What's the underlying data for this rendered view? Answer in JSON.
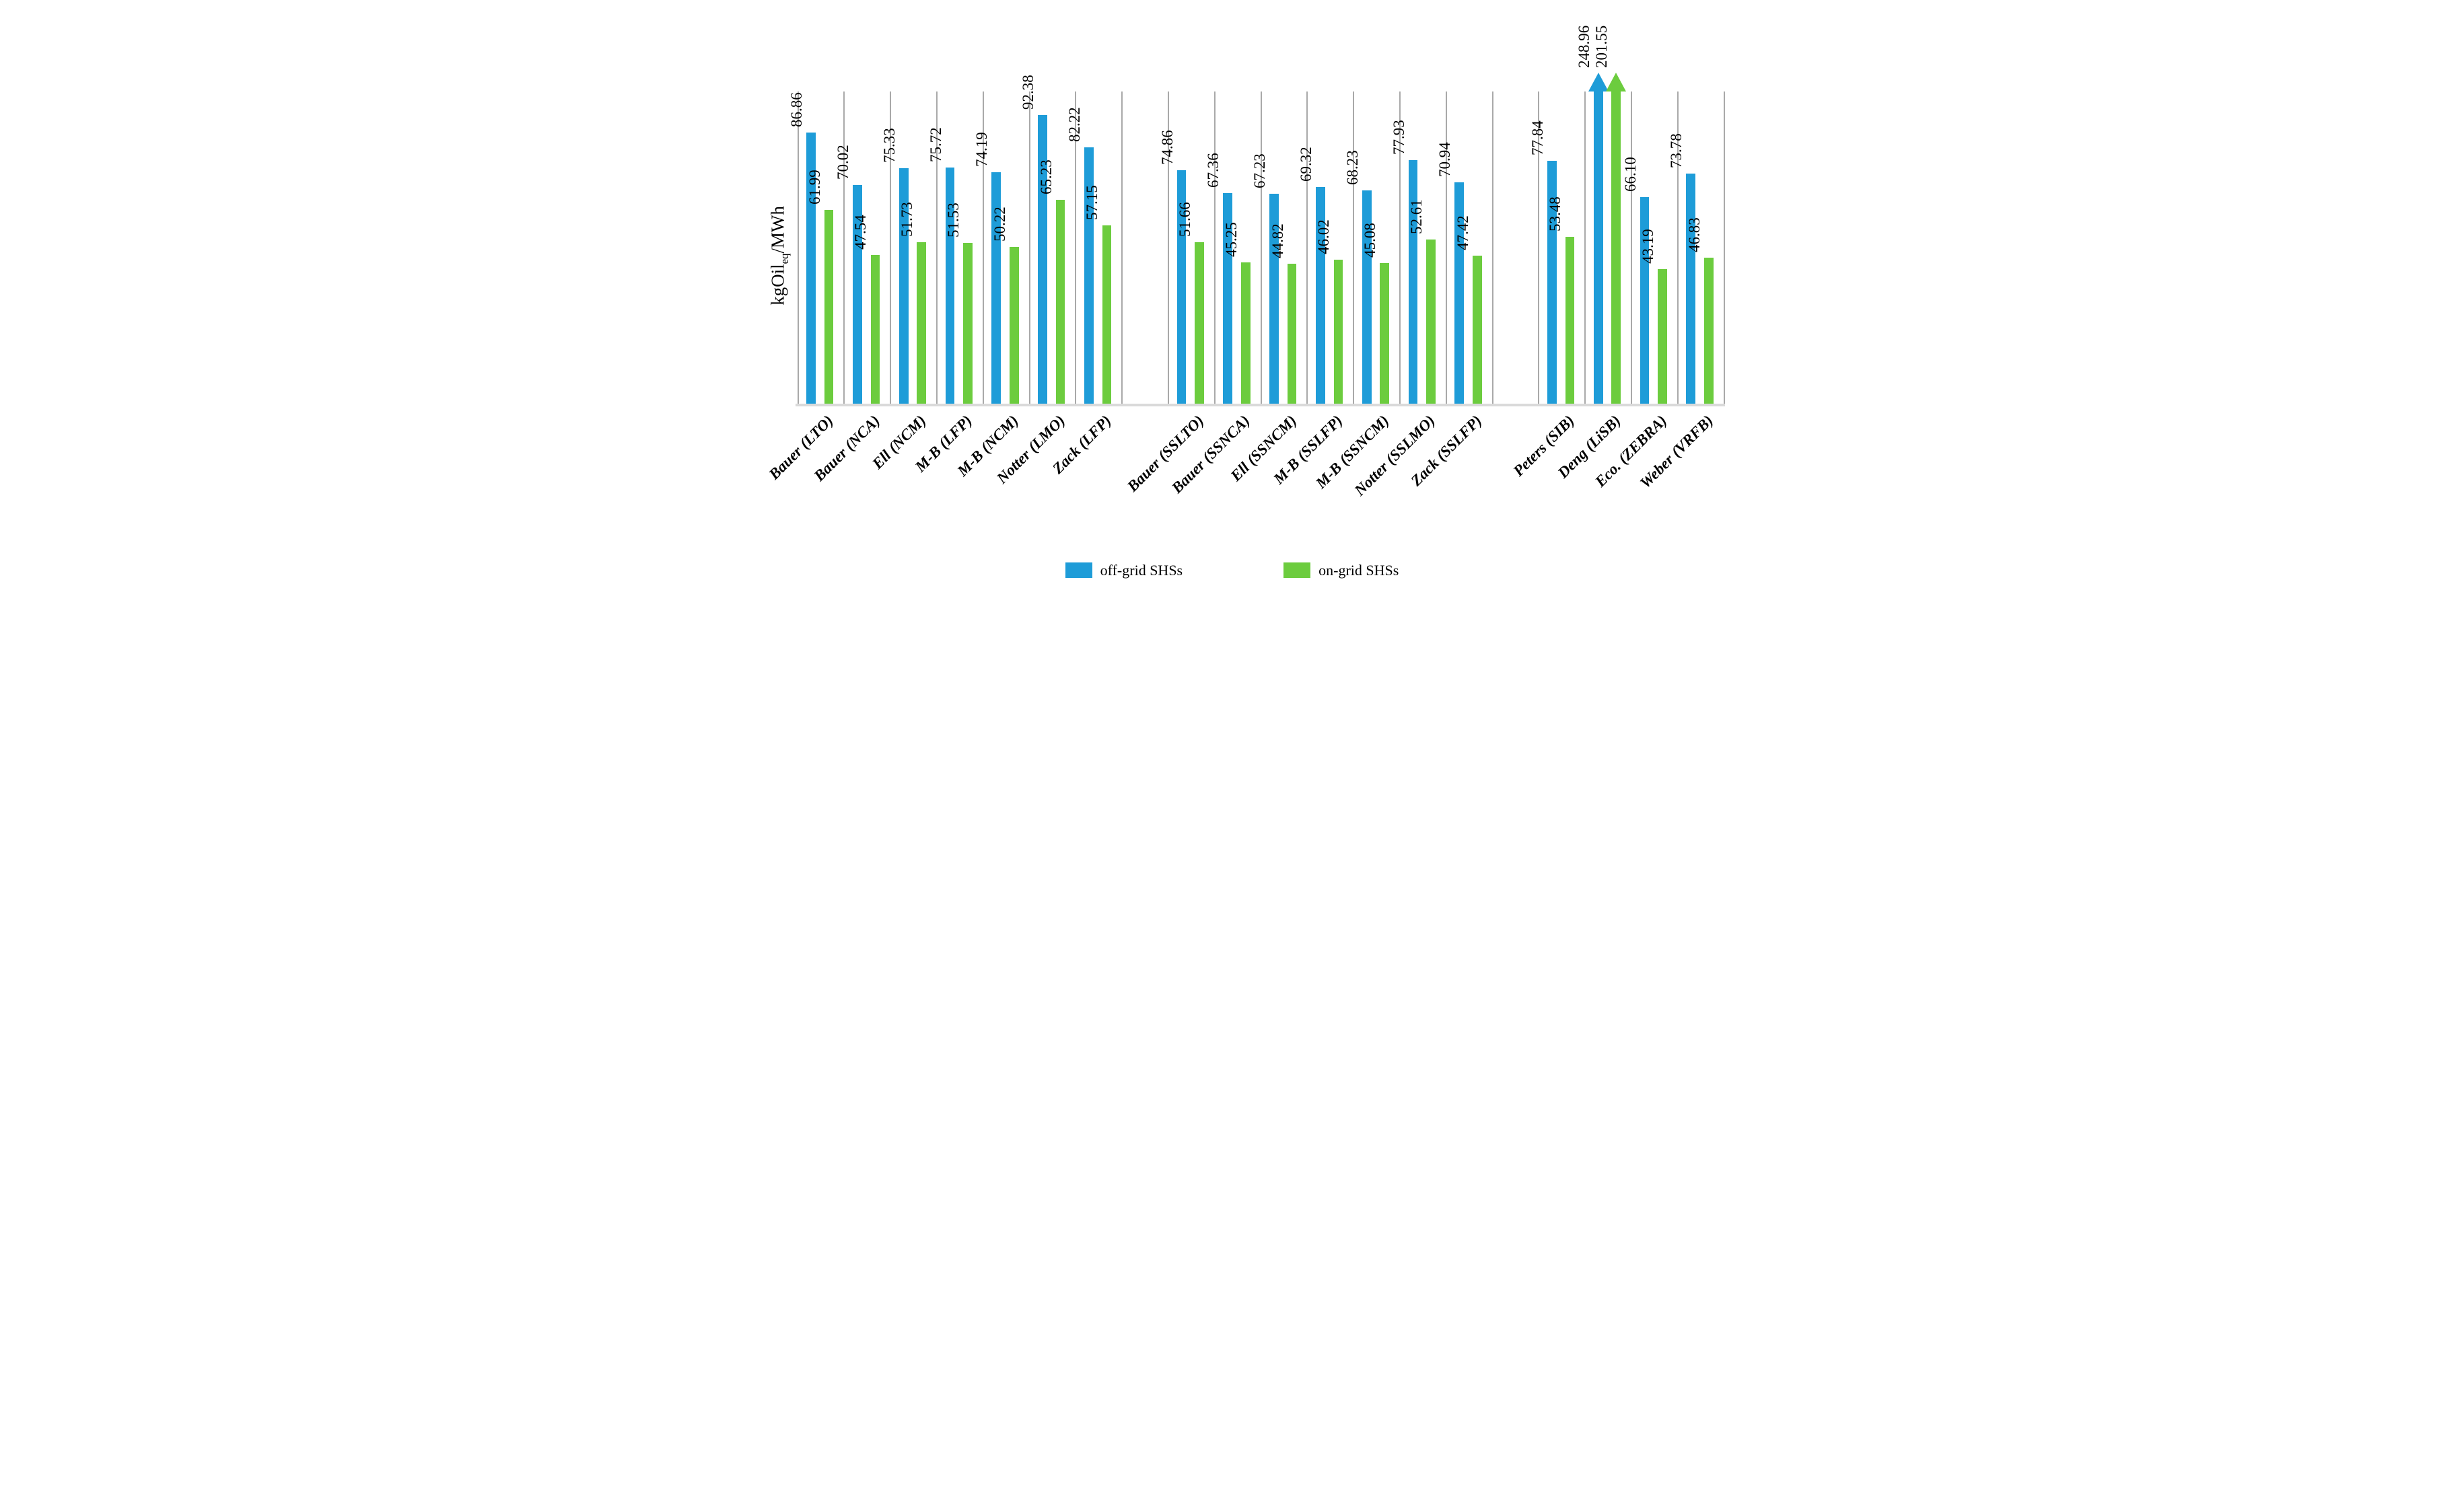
{
  "chart_data": {
    "type": "bar",
    "title": "",
    "xlabel": "",
    "ylabel": "kgOil_eq/MWh",
    "ylabel_parts": {
      "prefix": "kgOil",
      "subscript": "eq",
      "suffix": "/MWh"
    },
    "ylim": [
      0,
      100
    ],
    "y_axis_ticks": "none (no numeric ticks shown)",
    "grid": "vertical category separator lines only",
    "legend_position": "bottom-center",
    "value_label_style": "rotated 90deg, two decimals, above each bar",
    "overflow_marker": "bars exceeding axis top are clipped and capped with an upward arrow",
    "categories": [
      "Bauer (LTO)",
      "Bauer (NCA)",
      "Ell (NCM)",
      "M-B (LFP)",
      "M-B (NCM)",
      "Notter (LMO)",
      "Zack (LFP)",
      "",
      "Bauer (SSLTO)",
      "Bauer (SSNCA)",
      "Ell (SSNCM)",
      "M-B (SSLFP)",
      "M-B (SSNCM)",
      "Notter (SSLMO)",
      "Zack (SSLFP)",
      "",
      "Peters (SIB)",
      "Deng (LiSB)",
      "Eco. (ZEBRA)",
      "Weber (VRFB)"
    ],
    "series": [
      {
        "name": "off-grid SHSs",
        "color": "#1e9cd8",
        "values": [
          86.86,
          70.02,
          75.33,
          75.72,
          74.19,
          92.38,
          82.22,
          null,
          74.86,
          67.36,
          67.23,
          69.32,
          68.23,
          77.93,
          70.94,
          null,
          77.84,
          248.96,
          66.1,
          73.78
        ]
      },
      {
        "name": "on-grid SHSs",
        "color": "#6ccc3e",
        "values": [
          61.99,
          47.54,
          51.73,
          51.53,
          50.22,
          65.23,
          57.15,
          null,
          51.66,
          45.25,
          44.82,
          46.02,
          45.08,
          52.61,
          47.42,
          null,
          53.48,
          201.55,
          43.19,
          46.83
        ]
      }
    ],
    "colors": {
      "offgrid_blue": "#1e9cd8",
      "ongrid_green": "#6ccc3e",
      "gridline_gray": "#a9a9a9",
      "baseline_gray": "#dadada",
      "text_black": "#000000"
    }
  },
  "legend": {
    "items": [
      {
        "label": "off-grid SHSs",
        "color": "#1e9cd8"
      },
      {
        "label": "on-grid SHSs",
        "color": "#6ccc3e"
      }
    ]
  }
}
